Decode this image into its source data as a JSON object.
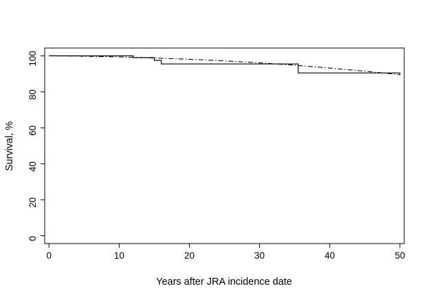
{
  "chart_data": {
    "type": "line",
    "title": "",
    "xlabel": "Years after JRA incidence date",
    "ylabel": "Survival, %",
    "xlim": [
      0,
      50
    ],
    "ylim": [
      0,
      100
    ],
    "xticks": [
      0,
      10,
      20,
      30,
      40,
      50
    ],
    "yticks": [
      0,
      20,
      40,
      60,
      80,
      100
    ],
    "grid": false,
    "legend": "none",
    "frame_color": "#000000",
    "series": [
      {
        "name": "observed-survival-step",
        "style": "solid-step",
        "color": "#000000",
        "width": 1.2,
        "points": [
          [
            0,
            100
          ],
          [
            12,
            100
          ],
          [
            12,
            99
          ],
          [
            15,
            99
          ],
          [
            15,
            97.5
          ],
          [
            16,
            97.5
          ],
          [
            16,
            95.5
          ],
          [
            35.5,
            95.5
          ],
          [
            35.5,
            90.5
          ],
          [
            50,
            90.5
          ],
          [
            50,
            89.5
          ]
        ]
      },
      {
        "name": "expected-survival-smooth",
        "style": "dash-dot",
        "dash": "7 3 1.5 3",
        "color": "#000000",
        "width": 1.1,
        "points": [
          [
            0,
            100
          ],
          [
            5,
            99.8
          ],
          [
            10,
            99.4
          ],
          [
            15,
            98.8
          ],
          [
            20,
            98.1
          ],
          [
            25,
            97.2
          ],
          [
            30,
            96.1
          ],
          [
            35,
            94.8
          ],
          [
            40,
            93.2
          ],
          [
            45,
            91.5
          ],
          [
            50,
            89.5
          ]
        ]
      }
    ]
  }
}
